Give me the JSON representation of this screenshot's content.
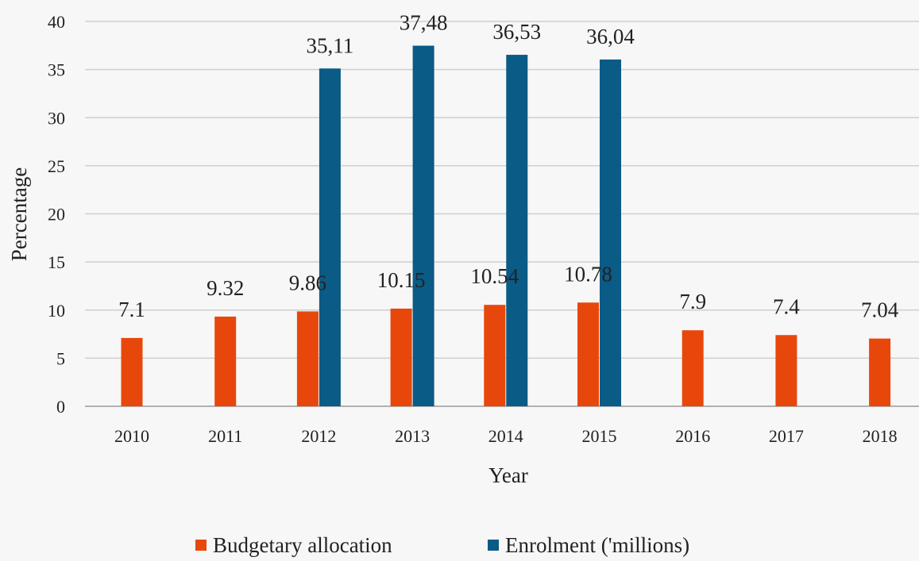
{
  "chart_data": {
    "type": "bar",
    "xlabel": "Year",
    "ylabel": "Percentage",
    "ylim": [
      0,
      40
    ],
    "yticks": [
      0,
      5,
      10,
      15,
      20,
      25,
      30,
      35,
      40
    ],
    "grid": true,
    "legend_position": "bottom",
    "categories": [
      "2010",
      "2011",
      "2012",
      "2013",
      "2014",
      "2015",
      "2016",
      "2017",
      "2018"
    ],
    "series": [
      {
        "name": "Budgetary allocation",
        "color": "#e8470b",
        "values": [
          7.1,
          9.32,
          9.86,
          10.15,
          10.54,
          10.78,
          7.9,
          7.4,
          7.04
        ],
        "labels": [
          "7.1",
          "9.32",
          "9.86",
          "10.15",
          "10.54",
          "10.78",
          "7.9",
          "7.4",
          "7.04"
        ]
      },
      {
        "name": "Enrolment ('millions)",
        "color": "#0a5b86",
        "values": [
          null,
          null,
          35.11,
          37.48,
          36.53,
          36.04,
          null,
          null,
          null
        ],
        "labels": [
          "",
          "",
          "35,11",
          "37,48",
          "36,53",
          "36,04",
          "",
          "",
          ""
        ]
      }
    ]
  }
}
